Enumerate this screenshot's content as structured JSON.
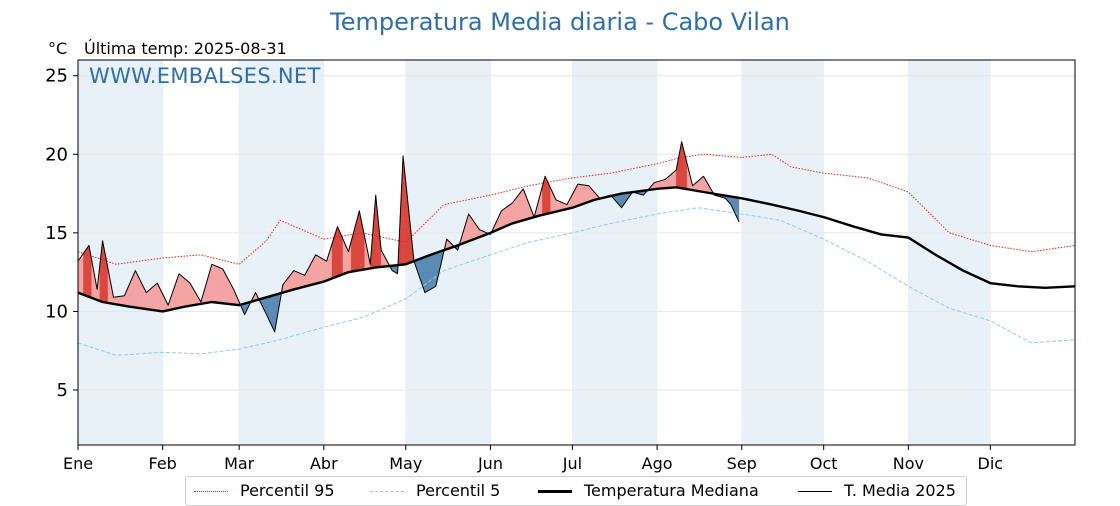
{
  "title": "Temperatura Media diaria - Cabo Vilan",
  "unit_label": "°C",
  "last_temp_label": "Última temp: 2025-08-31",
  "watermark": "WWW.EMBALSES.NET",
  "colors": {
    "title": "#2e6fa7",
    "p95": "#e8261a",
    "p5": "#8ecfe0",
    "median": "#000000",
    "current": "#000000",
    "above_fill": "#f4a3a3",
    "above_fill_strong": "#d9473f",
    "below_fill": "#5b8bb5",
    "month_band": "#e9f1f8"
  },
  "chart_data": {
    "type": "line",
    "title": "Temperatura Media diaria - Cabo Vilan",
    "ylabel": "°C",
    "xlabel": "",
    "ylim": [
      1.5,
      26
    ],
    "yticks": [
      5,
      10,
      15,
      20,
      25
    ],
    "xlim": [
      1,
      366
    ],
    "months": [
      "Ene",
      "Feb",
      "Mar",
      "Abr",
      "May",
      "Jun",
      "Jul",
      "Ago",
      "Sep",
      "Oct",
      "Nov",
      "Dic"
    ],
    "month_start_day": [
      1,
      32,
      60,
      91,
      121,
      152,
      182,
      213,
      244,
      274,
      305,
      335
    ],
    "grid": true,
    "legend_position": "bottom",
    "series": [
      {
        "name": "Percentil 95",
        "style": "dotted-red",
        "x": [
          1,
          15,
          32,
          46,
          60,
          70,
          75,
          91,
          105,
          121,
          135,
          152,
          166,
          182,
          196,
          213,
          222,
          230,
          244,
          255,
          262,
          274,
          290,
          305,
          320,
          335,
          350,
          366
        ],
        "y": [
          13.8,
          13.0,
          13.4,
          13.6,
          13.0,
          14.5,
          15.8,
          14.6,
          15.0,
          14.4,
          16.8,
          17.4,
          18.0,
          18.5,
          18.8,
          19.4,
          19.8,
          20.0,
          19.8,
          20.0,
          19.2,
          18.8,
          18.5,
          17.6,
          15.0,
          14.2,
          13.8,
          14.2
        ]
      },
      {
        "name": "Percentil 5",
        "style": "dashed-lightblue",
        "x": [
          1,
          15,
          32,
          46,
          60,
          75,
          91,
          105,
          121,
          135,
          152,
          166,
          182,
          196,
          213,
          228,
          244,
          258,
          274,
          290,
          305,
          320,
          335,
          350,
          366
        ],
        "y": [
          8.0,
          7.2,
          7.4,
          7.3,
          7.6,
          8.2,
          9.0,
          9.6,
          10.8,
          12.6,
          13.6,
          14.4,
          15.0,
          15.6,
          16.2,
          16.6,
          16.2,
          15.8,
          14.6,
          13.2,
          11.6,
          10.2,
          9.4,
          8.0,
          8.2
        ]
      },
      {
        "name": "Temperatura Mediana",
        "style": "solid-black-thick",
        "x": [
          1,
          10,
          20,
          32,
          40,
          50,
          60,
          70,
          80,
          91,
          100,
          110,
          121,
          130,
          140,
          152,
          160,
          170,
          182,
          190,
          200,
          213,
          220,
          230,
          244,
          255,
          265,
          274,
          285,
          295,
          305,
          315,
          325,
          335,
          345,
          355,
          366
        ],
        "y": [
          11.2,
          10.6,
          10.3,
          10.0,
          10.3,
          10.6,
          10.4,
          10.9,
          11.4,
          11.9,
          12.5,
          12.8,
          13.0,
          13.6,
          14.2,
          15.0,
          15.6,
          16.1,
          16.6,
          17.1,
          17.5,
          17.8,
          17.9,
          17.6,
          17.2,
          16.8,
          16.4,
          16.0,
          15.4,
          14.9,
          14.7,
          13.6,
          12.6,
          11.8,
          11.6,
          11.5,
          11.6
        ]
      },
      {
        "name": "T. Media 2025",
        "style": "solid-black-thin",
        "x": [
          1,
          5,
          8,
          10,
          14,
          18,
          22,
          26,
          30,
          34,
          38,
          42,
          46,
          50,
          54,
          58,
          62,
          66,
          70,
          73,
          76,
          80,
          84,
          88,
          92,
          96,
          100,
          104,
          108,
          110,
          112,
          116,
          118,
          120,
          124,
          128,
          132,
          136,
          140,
          144,
          148,
          152,
          156,
          160,
          164,
          168,
          172,
          176,
          180,
          184,
          188,
          192,
          196,
          200,
          204,
          208,
          212,
          216,
          220,
          222,
          226,
          230,
          234,
          238,
          240,
          243
        ],
        "y": [
          13.2,
          14.2,
          11.4,
          14.5,
          10.9,
          11.0,
          12.6,
          11.2,
          11.8,
          10.4,
          12.4,
          11.8,
          10.6,
          13.0,
          12.7,
          11.4,
          9.8,
          11.2,
          9.8,
          8.7,
          11.7,
          12.6,
          12.3,
          13.6,
          13.2,
          15.4,
          13.8,
          16.4,
          13.0,
          17.4,
          13.9,
          12.6,
          12.4,
          19.9,
          13.2,
          11.2,
          11.6,
          14.6,
          13.9,
          16.2,
          15.2,
          14.9,
          16.4,
          16.9,
          17.8,
          16.0,
          18.6,
          17.1,
          16.8,
          18.1,
          18.0,
          17.2,
          17.4,
          16.6,
          17.6,
          17.4,
          18.2,
          18.4,
          19.0,
          20.8,
          18.0,
          18.6,
          17.4,
          17.2,
          16.8,
          15.7
        ]
      }
    ]
  },
  "legend": {
    "p95": "Percentil 95",
    "p5": "Percentil 5",
    "median": "Temperatura Mediana",
    "current": "T. Media 2025"
  }
}
